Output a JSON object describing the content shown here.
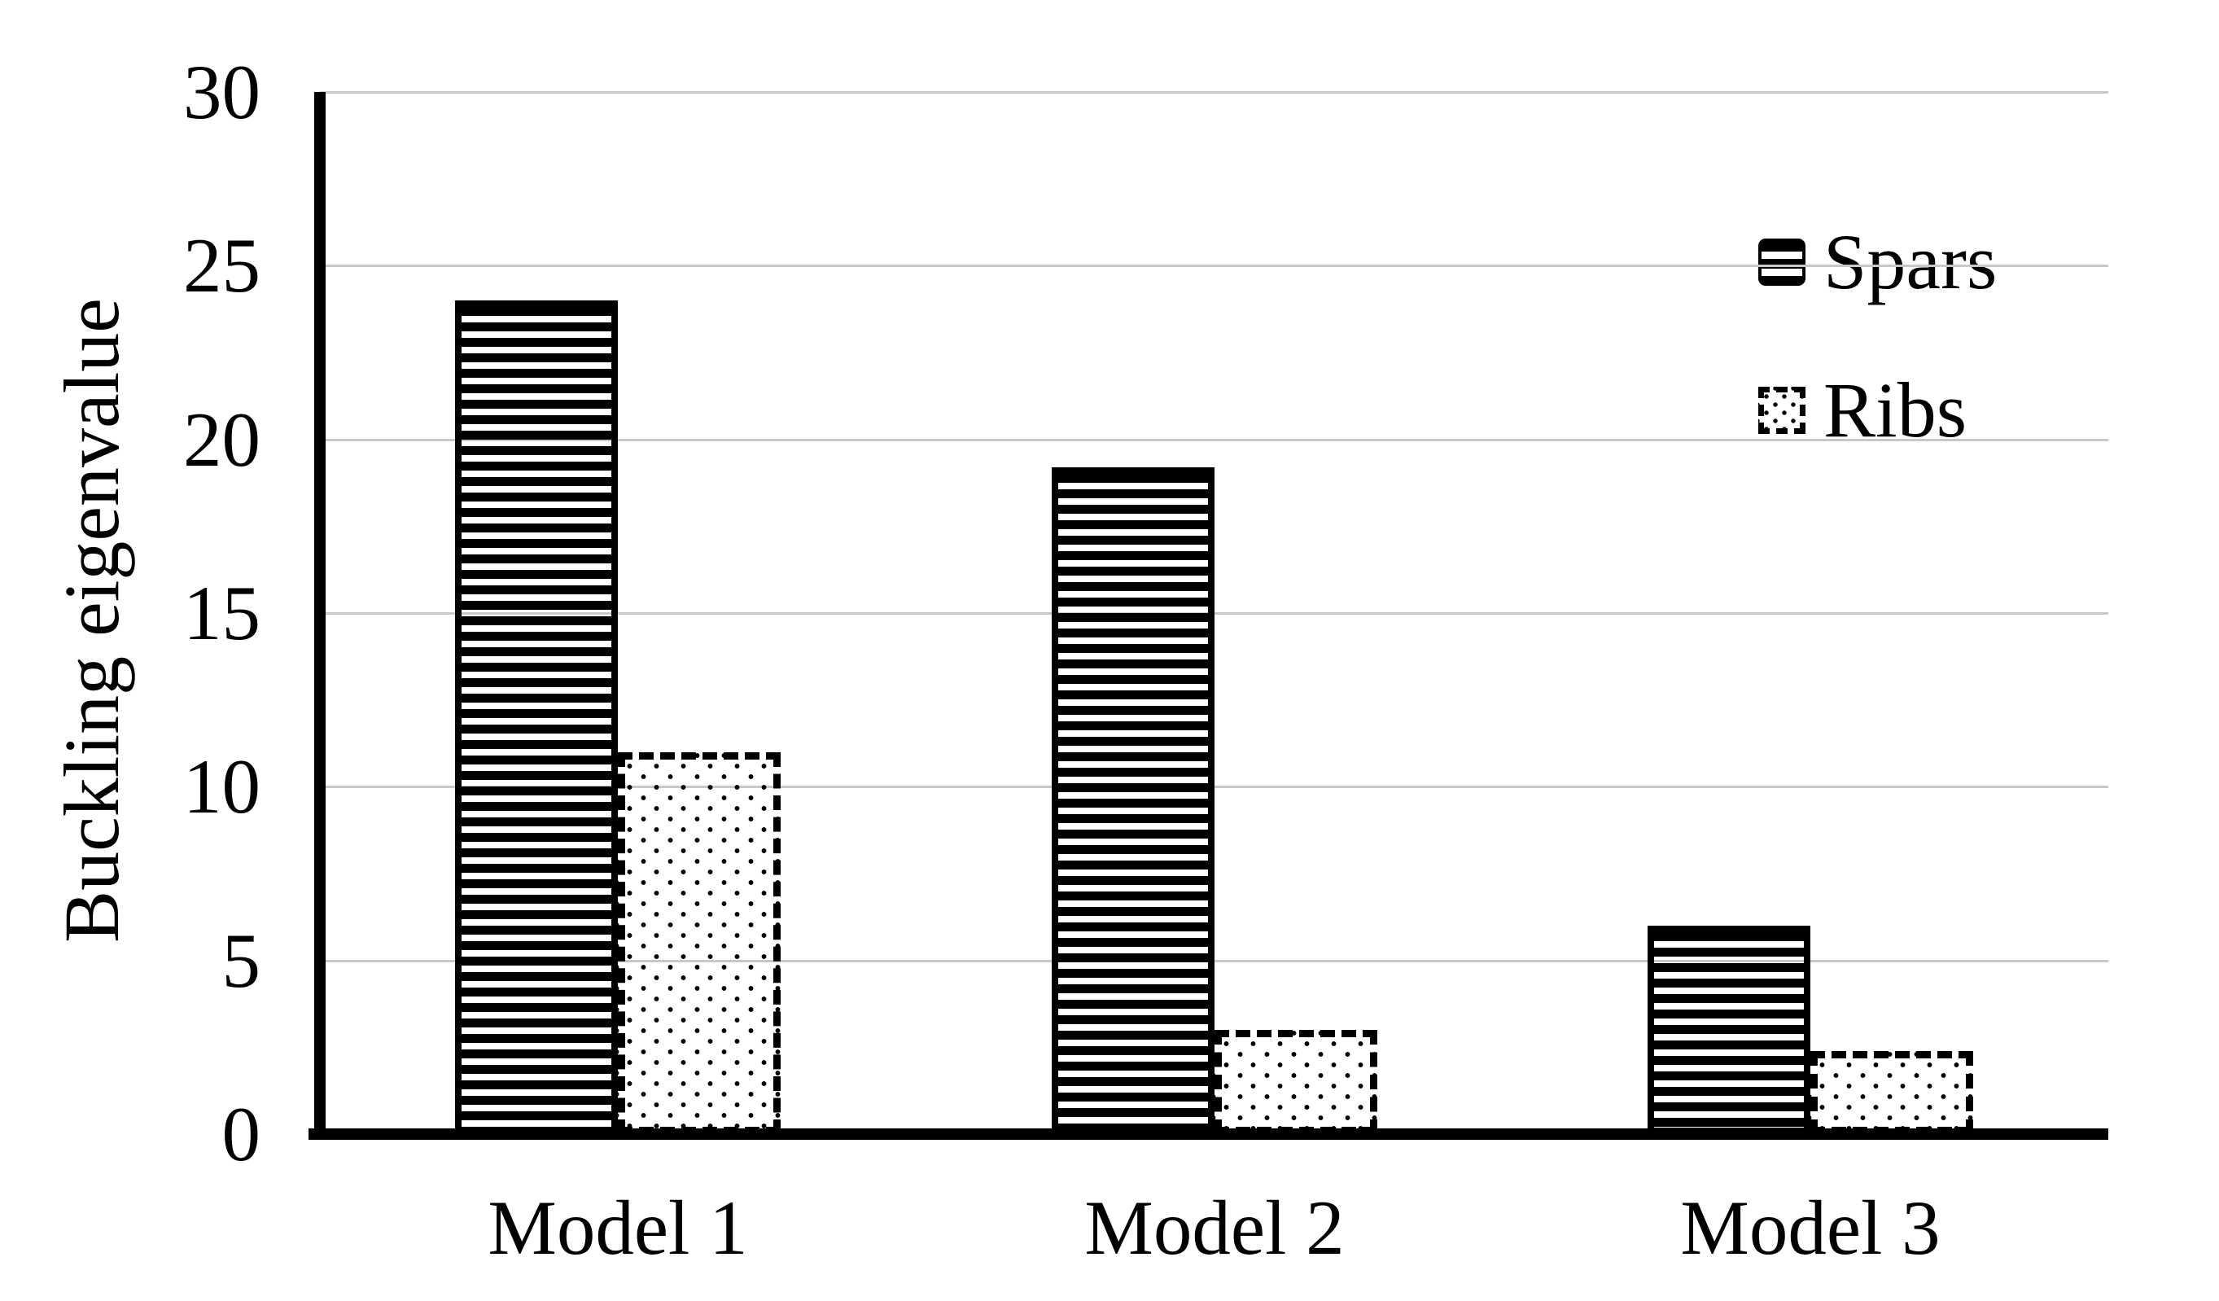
{
  "chart_data": {
    "type": "bar",
    "categories": [
      "Model 1",
      "Model 2",
      "Model 3"
    ],
    "series": [
      {
        "name": "Spars",
        "values": [
          24,
          19.2,
          6
        ],
        "fill_pattern": "horizontal-stripes-black",
        "border": "solid"
      },
      {
        "name": "Ribs",
        "values": [
          11,
          3,
          2.4
        ],
        "fill_pattern": "small-dots",
        "border": "dashed"
      }
    ],
    "title": "",
    "xlabel": "",
    "ylabel": "Buckling eigenvalue",
    "ylim": [
      0,
      30
    ],
    "yticks": [
      0,
      5,
      10,
      15,
      20,
      25,
      30
    ],
    "grid": "horizontal-gridlines-on",
    "legend_position": "top-right-inside",
    "colors": {
      "bars": "#000000",
      "background": "#ffffff",
      "gridline": "#c8c8c8",
      "text": "#000000"
    }
  }
}
